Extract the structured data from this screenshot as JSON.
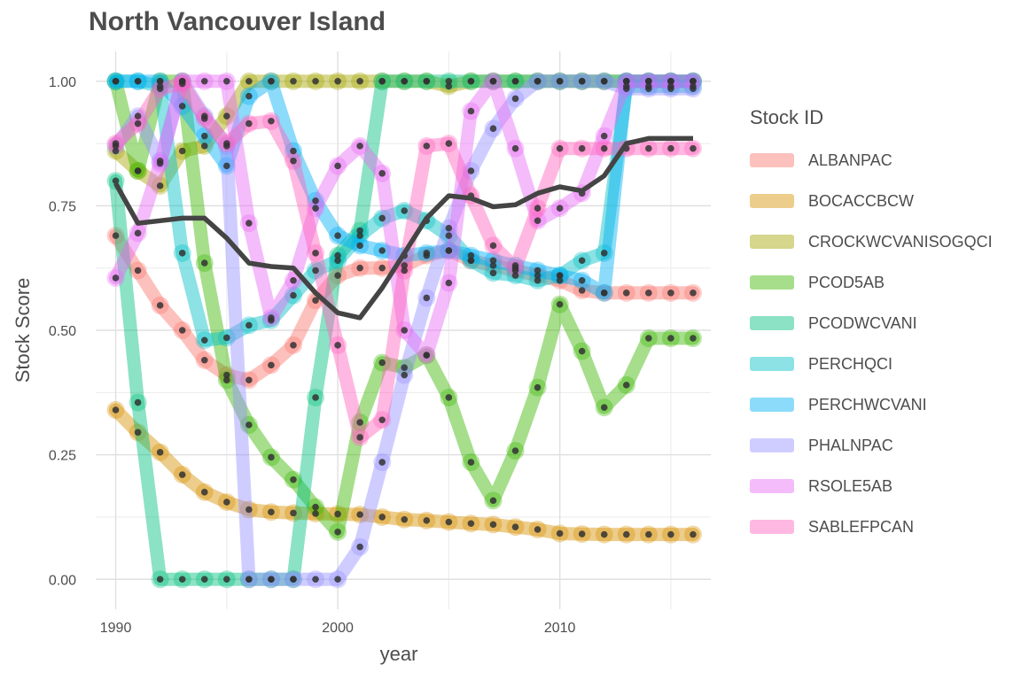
{
  "chart_data": {
    "type": "line",
    "title": "North Vancouver Island",
    "xlabel": "year",
    "ylabel": "Stock Score",
    "xlim": [
      1989.1,
      2016.8
    ],
    "ylim": [
      -0.06,
      1.06
    ],
    "x_ticks": [
      1990,
      2000,
      2010
    ],
    "y_ticks": [
      0.0,
      0.25,
      0.5,
      0.75,
      1.0
    ],
    "y_tick_labels": [
      "0.00",
      "0.25",
      "0.50",
      "0.75",
      "1.00"
    ],
    "grid": true,
    "legend_title": "Stock ID",
    "legend_position": "right",
    "series": [
      {
        "name": "ALBANPAC",
        "color": "#F8766D",
        "x": [
          1990,
          1991,
          1992,
          1993,
          1994,
          1995,
          1996,
          1997,
          1998,
          1999,
          2000,
          2001,
          2002,
          2003,
          2004,
          2005,
          2006,
          2007,
          2008,
          2009,
          2010,
          2011,
          2012,
          2013,
          2014,
          2015,
          2016
        ],
        "y": [
          0.69,
          0.62,
          0.55,
          0.5,
          0.44,
          0.41,
          0.4,
          0.43,
          0.47,
          0.56,
          0.61,
          0.625,
          0.625,
          0.63,
          0.65,
          0.66,
          0.64,
          0.63,
          0.62,
          0.61,
          0.6,
          0.58,
          0.575,
          0.575,
          0.575,
          0.575,
          0.575
        ]
      },
      {
        "name": "BOCACCBCW",
        "color": "#D89000",
        "x": [
          1990,
          1991,
          1992,
          1993,
          1994,
          1995,
          1996,
          1997,
          1998,
          1999,
          2000,
          2001,
          2002,
          2003,
          2004,
          2005,
          2006,
          2007,
          2008,
          2009,
          2010,
          2011,
          2012,
          2013,
          2014,
          2015,
          2016
        ],
        "y": [
          0.34,
          0.295,
          0.255,
          0.21,
          0.175,
          0.155,
          0.14,
          0.135,
          0.133,
          0.132,
          0.131,
          0.13,
          0.125,
          0.12,
          0.118,
          0.115,
          0.112,
          0.11,
          0.105,
          0.1,
          0.092,
          0.091,
          0.09,
          0.09,
          0.09,
          0.09,
          0.09
        ]
      },
      {
        "name": "CROCKWCVANISOGQCI",
        "color": "#A3A500",
        "x": [
          1990,
          1991,
          1992,
          1993,
          1994,
          1995,
          1996,
          1997,
          1998,
          1999,
          2000,
          2001,
          2002,
          2003,
          2004,
          2005,
          2006,
          2007,
          2008,
          2009,
          2010,
          2011,
          2012,
          2013,
          2014,
          2015,
          2016
        ],
        "y": [
          0.86,
          0.82,
          0.79,
          0.86,
          0.87,
          0.93,
          1.0,
          1.0,
          1.0,
          1.0,
          1.0,
          1.0,
          1.0,
          1.0,
          1.0,
          0.99,
          1.0,
          1.0,
          1.0,
          1.0,
          1.0,
          1.0,
          1.0,
          1.0,
          1.0,
          1.0,
          1.0
        ]
      },
      {
        "name": "PCOD5AB",
        "color": "#39B600",
        "x": [
          1990,
          1991,
          1992,
          1993,
          1994,
          1995,
          1996,
          1997,
          1998,
          1999,
          2000,
          2001,
          2002,
          2003,
          2004,
          2005,
          2006,
          2007,
          2008,
          2009,
          2010,
          2011,
          2012,
          2013,
          2014,
          2015,
          2016
        ],
        "y": [
          1.0,
          0.82,
          1.0,
          1.0,
          0.635,
          0.4,
          0.31,
          0.245,
          0.2,
          0.145,
          0.095,
          0.315,
          0.435,
          0.425,
          0.45,
          0.365,
          0.235,
          0.158,
          0.258,
          0.385,
          0.552,
          0.458,
          0.345,
          0.39,
          0.484,
          0.484,
          0.484
        ]
      },
      {
        "name": "PCODWCVANI",
        "color": "#00BF7D",
        "x": [
          1990,
          1991,
          1992,
          1993,
          1994,
          1995,
          1996,
          1997,
          1998,
          1999,
          2000,
          2001,
          2002,
          2003,
          2004,
          2005,
          2006,
          2007,
          2008,
          2009,
          2010,
          2011,
          2012,
          2013,
          2014,
          2015,
          2016
        ],
        "y": [
          0.8,
          0.355,
          0.0,
          0.0,
          0.0,
          0.0,
          0.0,
          0.0,
          0.0,
          0.365,
          0.65,
          0.7,
          1.0,
          1.0,
          1.0,
          1.0,
          1.0,
          1.0,
          1.0,
          1.0,
          1.0,
          1.0,
          1.0,
          1.0,
          1.0,
          1.0,
          1.0
        ]
      },
      {
        "name": "PERCHQCI",
        "color": "#00BFC4",
        "x": [
          1990,
          1991,
          1992,
          1993,
          1994,
          1995,
          1996,
          1997,
          1998,
          1999,
          2000,
          2001,
          2002,
          2003,
          2004,
          2005,
          2006,
          2007,
          2008,
          2009,
          2010,
          2011,
          2012,
          2013,
          2014,
          2015,
          2016
        ],
        "y": [
          1.0,
          1.0,
          0.99,
          0.655,
          0.48,
          0.485,
          0.51,
          0.52,
          0.57,
          0.62,
          0.64,
          0.69,
          0.725,
          0.74,
          0.72,
          0.69,
          0.64,
          0.615,
          0.61,
          0.6,
          0.61,
          0.64,
          0.655,
          0.99,
          0.99,
          0.99,
          0.99
        ]
      },
      {
        "name": "PERCHWCVANI",
        "color": "#00B0F6",
        "x": [
          1990,
          1991,
          1992,
          1993,
          1994,
          1995,
          1996,
          1997,
          1998,
          1999,
          2000,
          2001,
          2002,
          2003,
          2004,
          2005,
          2006,
          2007,
          2008,
          2009,
          2010,
          2011,
          2012,
          2013,
          2014,
          2015,
          2016
        ],
        "y": [
          1.0,
          1.0,
          1.0,
          0.95,
          0.89,
          0.83,
          0.97,
          1.0,
          0.86,
          0.76,
          0.69,
          0.67,
          0.66,
          0.65,
          0.655,
          0.66,
          0.65,
          0.64,
          0.63,
          0.62,
          0.61,
          0.6,
          0.575,
          1.0,
          1.0,
          1.0,
          1.0
        ]
      },
      {
        "name": "PHALNPAC",
        "color": "#9590FF",
        "x": [
          1990,
          1991,
          1992,
          1993,
          1994,
          1995,
          1996,
          1997,
          1998,
          1999,
          2000,
          2001,
          2002,
          2003,
          2004,
          2005,
          2006,
          2007,
          2008,
          2009,
          2010,
          2011,
          2012,
          2013,
          2014,
          2015,
          2016
        ],
        "y": [
          0.87,
          0.93,
          0.84,
          1.0,
          0.93,
          0.87,
          0.0,
          0.0,
          0.0,
          0.0,
          0.0,
          0.065,
          0.235,
          0.41,
          0.565,
          0.705,
          0.82,
          0.905,
          0.965,
          1.0,
          1.0,
          1.0,
          1.0,
          0.985,
          0.985,
          0.985,
          0.985
        ]
      },
      {
        "name": "RSOLE5AB",
        "color": "#E76BF3",
        "x": [
          1990,
          1991,
          1992,
          1993,
          1994,
          1995,
          1996,
          1997,
          1998,
          1999,
          2000,
          2001,
          2002,
          2003,
          2004,
          2005,
          2006,
          2007,
          2008,
          2009,
          2010,
          2011,
          2012,
          2013,
          2014,
          2015,
          2016
        ],
        "y": [
          0.605,
          0.695,
          0.835,
          1.0,
          1.0,
          1.0,
          0.715,
          0.525,
          0.6,
          0.745,
          0.83,
          0.87,
          0.815,
          0.5,
          0.45,
          0.595,
          0.94,
          1.0,
          0.865,
          0.72,
          0.745,
          0.775,
          0.89,
          1.0,
          1.0,
          1.0,
          1.0
        ]
      },
      {
        "name": "SABLEFPCAN",
        "color": "#FF62BC",
        "x": [
          1990,
          1991,
          1992,
          1993,
          1994,
          1995,
          1996,
          1997,
          1998,
          1999,
          2000,
          2001,
          2002,
          2003,
          2004,
          2005,
          2006,
          2007,
          2008,
          2009,
          2010,
          2011,
          2012,
          2013,
          2014,
          2015,
          2016
        ],
        "y": [
          0.875,
          0.915,
          0.985,
          0.995,
          0.925,
          0.875,
          0.915,
          0.92,
          0.84,
          0.655,
          0.47,
          0.285,
          0.32,
          0.62,
          0.87,
          0.875,
          0.77,
          0.67,
          0.625,
          0.745,
          0.865,
          0.865,
          0.865,
          0.865,
          0.865,
          0.865,
          0.865
        ]
      }
    ],
    "mean_series": {
      "color": "#444444",
      "x": [
        1990,
        1991,
        1992,
        1993,
        1994,
        1995,
        1996,
        1997,
        1998,
        1999,
        2000,
        2001,
        2002,
        2003,
        2004,
        2005,
        2006,
        2007,
        2008,
        2009,
        2010,
        2011,
        2012,
        2013,
        2014,
        2015,
        2016
      ],
      "y": [
        0.795,
        0.715,
        0.72,
        0.725,
        0.725,
        0.685,
        0.635,
        0.628,
        0.625,
        0.575,
        0.535,
        0.525,
        0.585,
        0.655,
        0.725,
        0.77,
        0.765,
        0.748,
        0.752,
        0.775,
        0.788,
        0.78,
        0.81,
        0.875,
        0.885,
        0.885,
        0.885
      ]
    }
  }
}
